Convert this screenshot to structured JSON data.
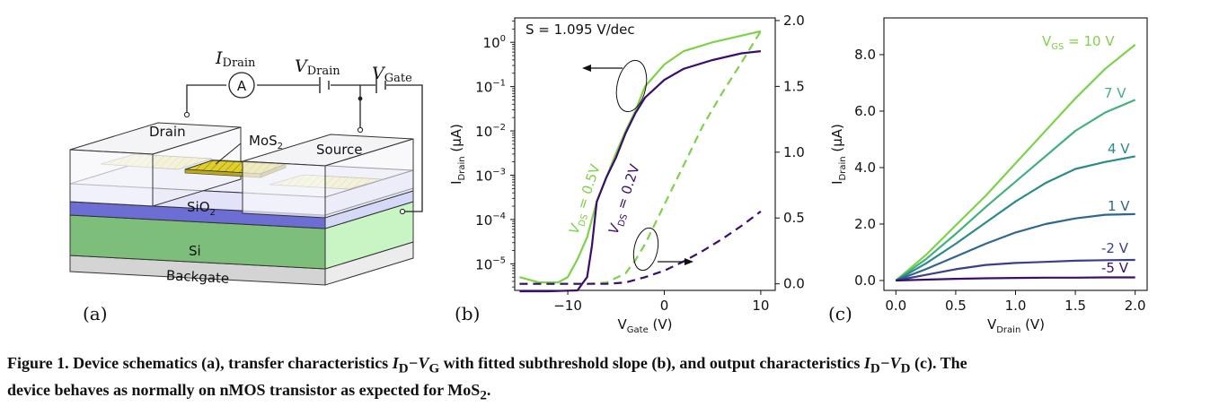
{
  "panel_a": {
    "label": "(a)",
    "i_drain": "I",
    "i_drain_sub": "Drain",
    "v_drain": "V",
    "v_drain_sub": "Drain",
    "v_gate": "V",
    "v_gate_sub": "Gate",
    "ammeter": "A",
    "drain": "Drain",
    "source": "Source",
    "mos2": "MoS",
    "mos2_sub": "2",
    "sio2": "SiO",
    "sio2_sub": "2",
    "si": "Si",
    "backgate": "Backgate",
    "colors": {
      "mos2": "#e0cf2a",
      "sio2": "#d6d8f7",
      "sio2_side": "#6c6ed4",
      "si": "#7dbf7a",
      "si_side": "#c9f5c4",
      "backgate": "#d4d4d4"
    }
  },
  "chart_data": [
    {
      "type": "line",
      "panel": "(b)",
      "title": "",
      "annotation": "S = 1.095 V/dec",
      "xlabel": "V",
      "xlabel_sub": "Gate",
      "xlabel_unit": " (V)",
      "ylabel_left": "I",
      "ylabel_left_sub": "Drain",
      "ylabel_left_unit": " (µA)",
      "x_ticks": [
        "−10",
        "0",
        "10"
      ],
      "x_tick_values": [
        -10,
        0,
        10
      ],
      "xlim": [
        -15.5,
        11.5
      ],
      "y_left_scale": "log",
      "y_left_ticks": [
        {
          "base": "10",
          "exp": "0",
          "value": 0
        },
        {
          "base": "10",
          "exp": "−1",
          "value": -1
        },
        {
          "base": "10",
          "exp": "−2",
          "value": -2
        },
        {
          "base": "10",
          "exp": "−3",
          "value": -3
        },
        {
          "base": "10",
          "exp": "−4",
          "value": -4
        },
        {
          "base": "10",
          "exp": "−5",
          "value": -5
        }
      ],
      "y_left_lim_log10": [
        -5.6,
        0.55
      ],
      "y_right_ticks": [
        "0.0",
        "0.5",
        "1.0",
        "1.5",
        "2.0"
      ],
      "y_right_tick_values": [
        0,
        0.5,
        1.0,
        1.5,
        2.0
      ],
      "y_right_lim": [
        -0.05,
        2.02
      ],
      "series": [
        {
          "name": "V_DS = 0.5V",
          "label_main": "V",
          "label_sub": "DS",
          "label_rest": " = 0.5V",
          "color": "#7ed14a",
          "axis": "left_log",
          "style": "solid",
          "x": [
            -15,
            -13,
            -11,
            -10,
            -9,
            -8,
            -7.5,
            -7,
            -6,
            -5,
            -4,
            -3,
            -2,
            0,
            2,
            5,
            8,
            10
          ],
          "y_log10": [
            -5.3,
            -5.42,
            -5.42,
            -5.3,
            -4.9,
            -4.4,
            -4.0,
            -3.6,
            -3.05,
            -2.5,
            -2.0,
            -1.55,
            -1.0,
            -0.5,
            -0.2,
            0.0,
            0.15,
            0.25
          ]
        },
        {
          "name": "V_DS = 0.2V",
          "label_main": "V",
          "label_sub": "DS",
          "label_rest": " = 0.2V",
          "color": "#3a0f6b",
          "axis": "left_log",
          "style": "solid",
          "x": [
            -15,
            -12,
            -9,
            -8,
            -7.5,
            -7,
            -6,
            -5,
            -4,
            -3,
            -2,
            0,
            2,
            5,
            8,
            10
          ],
          "y_log10": [
            -5.62,
            -5.62,
            -5.6,
            -5.3,
            -4.6,
            -3.6,
            -3.05,
            -2.6,
            -2.05,
            -1.6,
            -1.25,
            -0.85,
            -0.6,
            -0.4,
            -0.25,
            -0.2
          ]
        },
        {
          "name": "V_DS = 0.5V (linear)",
          "color": "#7ed14a",
          "axis": "right_linear",
          "style": "dashed",
          "x": [
            -15,
            -8,
            -6,
            -4,
            -3,
            -2,
            0,
            2,
            4,
            6,
            8,
            10
          ],
          "y": [
            0.0,
            0.0,
            0.01,
            0.08,
            0.18,
            0.3,
            0.6,
            0.9,
            1.2,
            1.45,
            1.68,
            1.92
          ]
        },
        {
          "name": "V_DS = 0.2V (linear)",
          "color": "#3a0f6b",
          "axis": "right_linear",
          "style": "dashed",
          "x": [
            -15,
            -6,
            -4,
            -2,
            0,
            2,
            4,
            6,
            8,
            10
          ],
          "y": [
            0.0,
            0.0,
            0.01,
            0.05,
            0.1,
            0.17,
            0.25,
            0.34,
            0.44,
            0.55
          ]
        }
      ]
    },
    {
      "type": "line",
      "panel": "(c)",
      "title": "",
      "xlabel": "V",
      "xlabel_sub": "Drain",
      "xlabel_unit": " (V)",
      "ylabel": "I",
      "ylabel_sub": "Drain",
      "ylabel_unit": " (µA)",
      "x_ticks": [
        "0.0",
        "0.5",
        "1.0",
        "1.5",
        "2.0"
      ],
      "x_tick_values": [
        0,
        0.5,
        1.0,
        1.5,
        2.0
      ],
      "xlim": [
        -0.1,
        2.1
      ],
      "y_ticks": [
        "0.0",
        "2.0",
        "4.0",
        "6.0",
        "8.0"
      ],
      "y_tick_values": [
        0,
        2,
        4,
        6,
        8
      ],
      "ylim": [
        -0.35,
        9.3
      ],
      "legend_prefix": "V",
      "legend_prefix_sub": "GS",
      "series": [
        {
          "name": "V_GS = 10 V",
          "label": " = 10 V",
          "color": "#7ed14a",
          "x": [
            0,
            0.25,
            0.5,
            0.75,
            1.0,
            1.25,
            1.5,
            1.75,
            2.0
          ],
          "values": [
            0.0,
            0.9,
            1.95,
            3.0,
            4.15,
            5.3,
            6.45,
            7.5,
            8.35
          ]
        },
        {
          "name": "7 V",
          "label": "7 V",
          "color": "#45b07f",
          "x": [
            0,
            0.25,
            0.5,
            0.75,
            1.0,
            1.25,
            1.5,
            1.75,
            2.0
          ],
          "values": [
            0.0,
            0.75,
            1.65,
            2.6,
            3.5,
            4.4,
            5.3,
            5.95,
            6.4
          ]
        },
        {
          "name": "4 V",
          "label": "4 V",
          "color": "#2e8a8a",
          "x": [
            0,
            0.25,
            0.5,
            0.75,
            1.0,
            1.25,
            1.5,
            1.75,
            2.0
          ],
          "values": [
            0.0,
            0.6,
            1.3,
            2.05,
            2.8,
            3.45,
            3.95,
            4.2,
            4.4
          ]
        },
        {
          "name": "1 V",
          "label": "1 V",
          "color": "#2f6690",
          "x": [
            0,
            0.25,
            0.5,
            0.75,
            1.0,
            1.25,
            1.5,
            1.75,
            2.0
          ],
          "values": [
            0.0,
            0.4,
            0.85,
            1.3,
            1.7,
            2.0,
            2.2,
            2.33,
            2.35
          ]
        },
        {
          "name": "-2 V",
          "label": "-2 V",
          "color": "#3b3f8a",
          "x": [
            0,
            0.25,
            0.5,
            0.75,
            1.0,
            1.25,
            1.5,
            1.75,
            2.0
          ],
          "values": [
            0.0,
            0.2,
            0.4,
            0.55,
            0.62,
            0.66,
            0.7,
            0.72,
            0.73
          ]
        },
        {
          "name": "-5 V",
          "label": "-5 V",
          "color": "#3a0f6b",
          "x": [
            0,
            0.25,
            0.5,
            0.75,
            1.0,
            1.25,
            1.5,
            1.75,
            2.0
          ],
          "values": [
            0.0,
            0.03,
            0.06,
            0.08,
            0.09,
            0.1,
            0.1,
            0.11,
            0.11
          ]
        }
      ]
    }
  ],
  "caption": {
    "lead": "Figure 1. Device schematics (a), transfer characteristics ",
    "id_vg": "I",
    "id_vg_sub1": "D",
    "id_vg_mid": "−V",
    "id_vg_sub2": "G",
    "middle": " with fitted subthreshold slope (b), and output characteristics ",
    "id_vd": "I",
    "id_vd_sub1": "D",
    "id_vd_mid": "−V",
    "id_vd_sub2": "D",
    "tail1": " (c). The",
    "line2": "device behaves as normally on nMOS transistor as expected for MoS",
    "line2_sub": "2",
    "line2_end": "."
  }
}
